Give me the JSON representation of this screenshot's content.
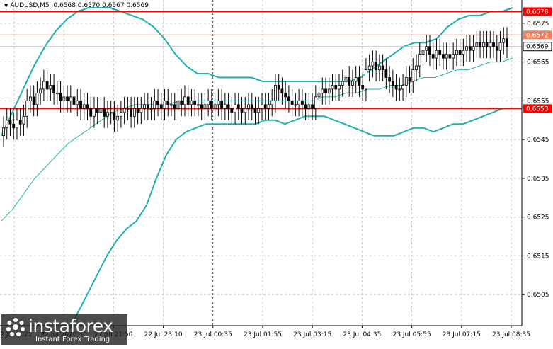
{
  "header": {
    "symbol": "AUDUSD,M5",
    "ohlc": "0.6568 0.6570 0.6567 0.6569"
  },
  "logo": {
    "name": "instaforex",
    "tagline": "Instant Forex Trading"
  },
  "colors": {
    "band": "#20b2aa",
    "candle": "#000000",
    "level": "#ff0000",
    "resistance_line": "#f08060",
    "grid": "#c8c8c8",
    "price_line": "#c0c0c0"
  },
  "chart_data": {
    "type": "candlestick",
    "symbol": "AUDUSD",
    "timeframe": "M5",
    "ylim": [
      0.6497,
      0.6581
    ],
    "grid": true,
    "x_tick_labels": [
      "22 Jul 2021",
      "22 Jul 2020:30",
      "22 Jul 21:50",
      "22 Jul 23:10",
      "23 Jul 00:35",
      "23 Jul 01:55",
      "23 Jul 03:15",
      "23 Jul 04:35",
      "23 Jul 05:55",
      "23 Jul 07:15",
      "23 Jul 08:35"
    ],
    "y_tick_labels": [
      "0.6575",
      "0.6565",
      "0.6555",
      "0.6545",
      "0.6535",
      "0.6525",
      "0.6515",
      "0.6505"
    ],
    "y_ticks": [
      0.6575,
      0.6565,
      0.6555,
      0.6545,
      0.6535,
      0.6525,
      0.6515,
      0.6505
    ],
    "horizontal_levels": [
      {
        "value": 0.6578,
        "label": "0.6578",
        "color": "#ff0000"
      },
      {
        "value": 0.6572,
        "label": "0.6572",
        "color": "#f08060"
      },
      {
        "value": 0.6553,
        "label": "0.6553",
        "color": "#ff0000"
      }
    ],
    "current_price": {
      "value": 0.6569,
      "label": "0.6569"
    },
    "close": [
      0.6548,
      0.655,
      0.6549,
      0.6548,
      0.655,
      0.6549,
      0.6551,
      0.6555,
      0.6556,
      0.6554,
      0.6557,
      0.6558,
      0.656,
      0.6558,
      0.6559,
      0.6557,
      0.6557,
      0.6555,
      0.6556,
      0.6555,
      0.6556,
      0.6554,
      0.6555,
      0.6553,
      0.6554,
      0.6553,
      0.6551,
      0.6553,
      0.6552,
      0.6553,
      0.6551,
      0.6552,
      0.6552,
      0.655,
      0.6551,
      0.6552,
      0.6553,
      0.6553,
      0.6551,
      0.6553,
      0.6552,
      0.6553,
      0.6554,
      0.6553,
      0.6553,
      0.6555,
      0.6554,
      0.6553,
      0.6555,
      0.6554,
      0.6554,
      0.6553,
      0.6555,
      0.6554,
      0.6556,
      0.6554,
      0.6555,
      0.6554,
      0.6554,
      0.6553,
      0.6554,
      0.6555,
      0.6553,
      0.6554,
      0.6555,
      0.6553,
      0.6554,
      0.6553,
      0.6552,
      0.6554,
      0.6553,
      0.6552,
      0.6553,
      0.6554,
      0.6553,
      0.6552,
      0.6553,
      0.6554,
      0.6553,
      0.6554,
      0.6555,
      0.6559,
      0.6558,
      0.6557,
      0.6556,
      0.6555,
      0.6554,
      0.6554,
      0.6555,
      0.6554,
      0.6553,
      0.6554,
      0.6553,
      0.6556,
      0.6557,
      0.6558,
      0.6557,
      0.6558,
      0.6559,
      0.6558,
      0.6559,
      0.656,
      0.6561,
      0.6559,
      0.656,
      0.6561,
      0.6559,
      0.6558,
      0.6563,
      0.6564,
      0.6565,
      0.6563,
      0.6564,
      0.6563,
      0.6561,
      0.656,
      0.6559,
      0.6558,
      0.6558,
      0.6559,
      0.6561,
      0.656,
      0.6563,
      0.6564,
      0.6567,
      0.6568,
      0.6569,
      0.6567,
      0.6566,
      0.6568,
      0.6567,
      0.6566,
      0.6567,
      0.6566,
      0.6567,
      0.6568,
      0.6567,
      0.6568,
      0.6569,
      0.6568,
      0.6569,
      0.657,
      0.6569,
      0.657,
      0.6569,
      0.657,
      0.6569,
      0.6568,
      0.657,
      0.6571,
      0.6569
    ],
    "upper_band": [
      0.6546,
      0.6552,
      0.6558,
      0.6564,
      0.6569,
      0.6573,
      0.6576,
      0.6578,
      0.6579,
      0.6579,
      0.6579,
      0.6578,
      0.6577,
      0.6576,
      0.6574,
      0.6571,
      0.6567,
      0.6564,
      0.6562,
      0.6562,
      0.6561,
      0.6561,
      0.6561,
      0.6561,
      0.656,
      0.656,
      0.656,
      0.656,
      0.656,
      0.656,
      0.656,
      0.656,
      0.656,
      0.6561,
      0.6563,
      0.6565,
      0.6567,
      0.6569,
      0.657,
      0.657,
      0.6571,
      0.6574,
      0.6576,
      0.6577,
      0.6577,
      0.6578,
      0.6578,
      0.6579
    ],
    "lower_band": [
      0.6495,
      0.65,
      0.6505,
      0.651,
      0.6515,
      0.6519,
      0.6522,
      0.6524,
      0.6528,
      0.6535,
      0.6541,
      0.6545,
      0.6547,
      0.6548,
      0.6549,
      0.6549,
      0.6549,
      0.6549,
      0.6549,
      0.6549,
      0.655,
      0.655,
      0.6549,
      0.655,
      0.6551,
      0.6551,
      0.6551,
      0.655,
      0.6549,
      0.6548,
      0.6547,
      0.6546,
      0.6546,
      0.6546,
      0.6547,
      0.6548,
      0.6548,
      0.6547,
      0.6548,
      0.6549,
      0.6549,
      0.655,
      0.6551,
      0.6552,
      0.6553,
      0.6553
    ],
    "middle_band": [
      0.6524,
      0.6527,
      0.6531,
      0.6535,
      0.6538,
      0.6541,
      0.6544,
      0.6546,
      0.6548,
      0.655,
      0.6552,
      0.6553,
      0.6554,
      0.6554,
      0.6554,
      0.6554,
      0.6555,
      0.6555,
      0.6555,
      0.6555,
      0.6555,
      0.6555,
      0.6555,
      0.6555,
      0.6555,
      0.6555,
      0.6555,
      0.6555,
      0.6555,
      0.6556,
      0.6556,
      0.6557,
      0.6557,
      0.6558,
      0.6558,
      0.6559,
      0.6559,
      0.656,
      0.6561,
      0.6561,
      0.6562,
      0.6563,
      0.6563,
      0.6564,
      0.6565,
      0.6565,
      0.6566
    ]
  }
}
